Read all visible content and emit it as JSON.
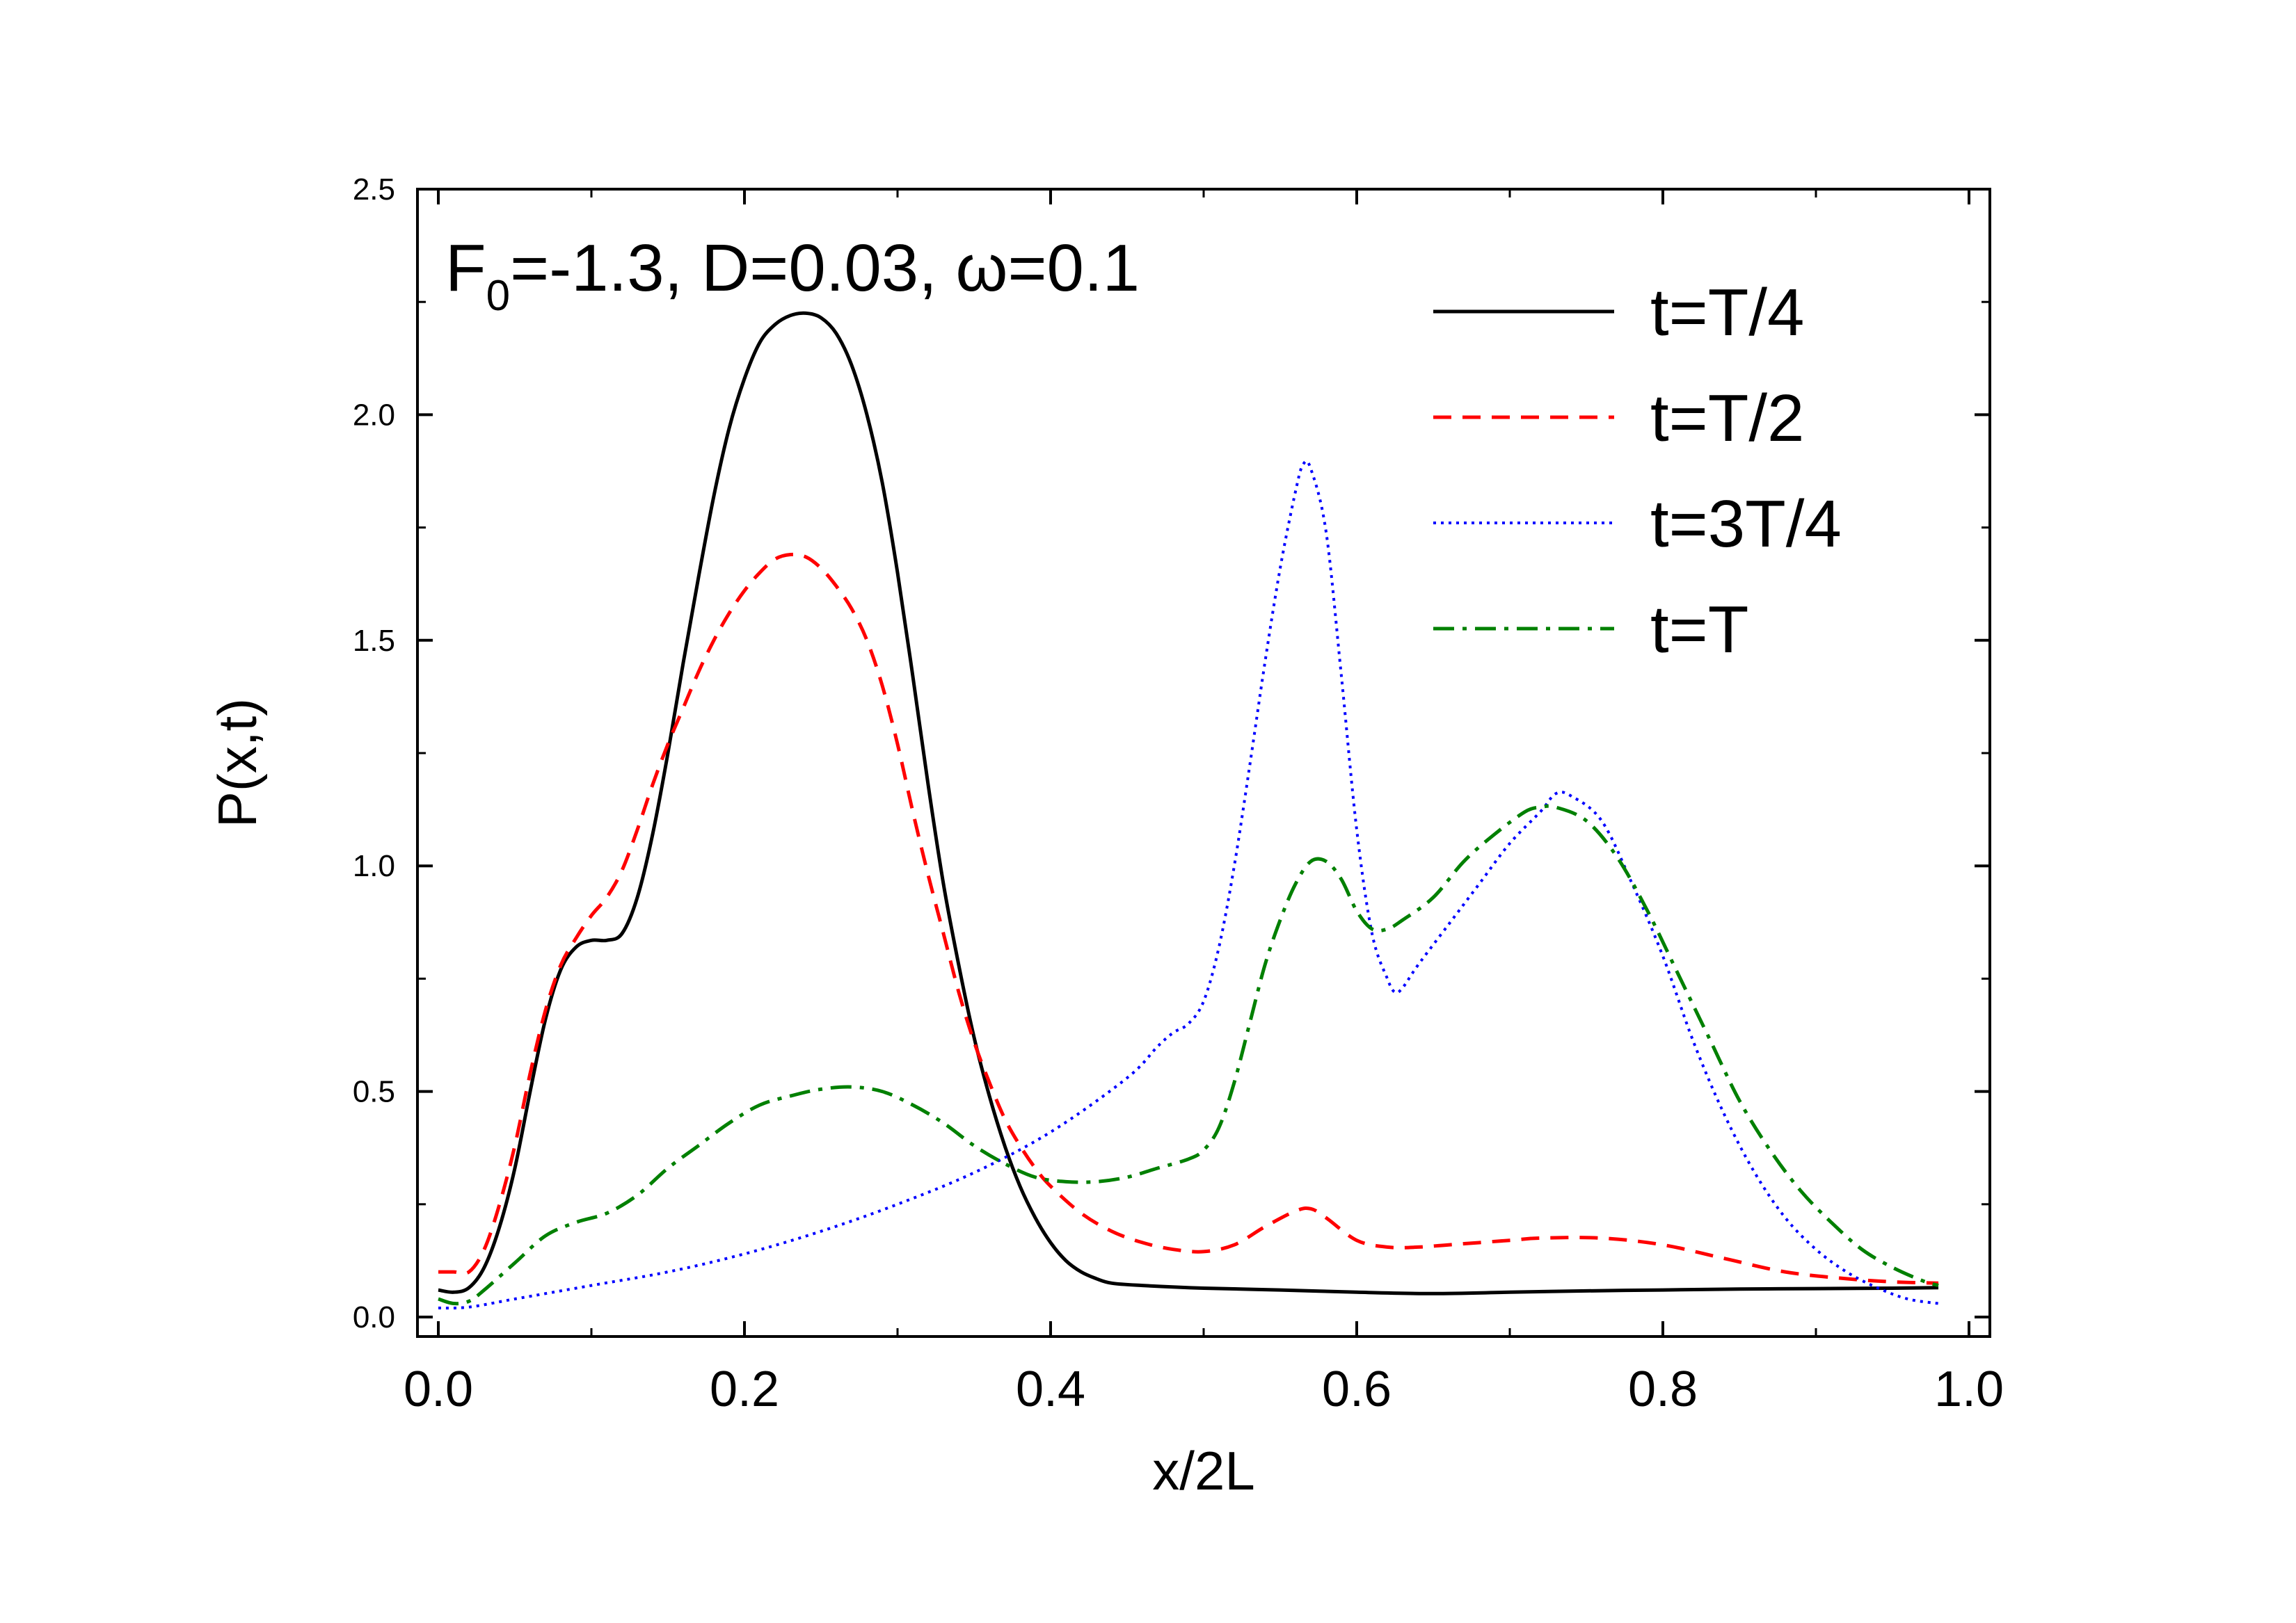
{
  "chart_data": {
    "type": "line",
    "title": "",
    "xlabel": "x/2L",
    "ylabel": "P(x,t)",
    "xlim": [
      0.0,
      1.0
    ],
    "ylim": [
      0.0,
      2.5
    ],
    "xticks": [
      "0.0",
      "0.2",
      "0.4",
      "0.6",
      "0.8",
      "1.0"
    ],
    "xtick_values": [
      0.0,
      0.2,
      0.4,
      0.6,
      0.8,
      1.0
    ],
    "yticks": [
      "0.0",
      "0.5",
      "1.0",
      "1.5",
      "2.0",
      "2.5"
    ],
    "ytick_values": [
      0.0,
      0.5,
      1.0,
      1.5,
      2.0,
      2.5
    ],
    "grid": false,
    "legend_position": "top-right",
    "annotation": {
      "parts": [
        "F",
        "0",
        "=-1.3, D=0.03, ",
        "ω",
        "=0.1"
      ]
    },
    "series": [
      {
        "name": "t=T/4",
        "color": "#000000",
        "dash": "solid",
        "points": [
          [
            0.0,
            0.06
          ],
          [
            0.01,
            0.055
          ],
          [
            0.02,
            0.065
          ],
          [
            0.03,
            0.11
          ],
          [
            0.04,
            0.2
          ],
          [
            0.05,
            0.33
          ],
          [
            0.06,
            0.5
          ],
          [
            0.07,
            0.66
          ],
          [
            0.08,
            0.77
          ],
          [
            0.09,
            0.82
          ],
          [
            0.1,
            0.835
          ],
          [
            0.11,
            0.835
          ],
          [
            0.12,
            0.85
          ],
          [
            0.13,
            0.93
          ],
          [
            0.14,
            1.07
          ],
          [
            0.15,
            1.25
          ],
          [
            0.16,
            1.45
          ],
          [
            0.17,
            1.64
          ],
          [
            0.18,
            1.82
          ],
          [
            0.19,
            1.97
          ],
          [
            0.2,
            2.08
          ],
          [
            0.21,
            2.16
          ],
          [
            0.22,
            2.2
          ],
          [
            0.23,
            2.22
          ],
          [
            0.24,
            2.225
          ],
          [
            0.25,
            2.215
          ],
          [
            0.26,
            2.18
          ],
          [
            0.27,
            2.11
          ],
          [
            0.28,
            2.0
          ],
          [
            0.29,
            1.85
          ],
          [
            0.3,
            1.65
          ],
          [
            0.31,
            1.42
          ],
          [
            0.32,
            1.18
          ],
          [
            0.33,
            0.96
          ],
          [
            0.34,
            0.78
          ],
          [
            0.35,
            0.62
          ],
          [
            0.36,
            0.49
          ],
          [
            0.37,
            0.38
          ],
          [
            0.38,
            0.29
          ],
          [
            0.39,
            0.22
          ],
          [
            0.4,
            0.165
          ],
          [
            0.41,
            0.125
          ],
          [
            0.42,
            0.1
          ],
          [
            0.43,
            0.085
          ],
          [
            0.44,
            0.075
          ],
          [
            0.46,
            0.07
          ],
          [
            0.5,
            0.064
          ],
          [
            0.55,
            0.06
          ],
          [
            0.6,
            0.055
          ],
          [
            0.65,
            0.052
          ],
          [
            0.7,
            0.055
          ],
          [
            0.75,
            0.058
          ],
          [
            0.8,
            0.06
          ],
          [
            0.85,
            0.062
          ],
          [
            0.9,
            0.063
          ],
          [
            0.95,
            0.064
          ],
          [
            0.98,
            0.065
          ]
        ]
      },
      {
        "name": "t=T/2",
        "color": "#ff0000",
        "dash": "dashed",
        "points": [
          [
            0.0,
            0.1
          ],
          [
            0.01,
            0.1
          ],
          [
            0.02,
            0.1
          ],
          [
            0.03,
            0.15
          ],
          [
            0.04,
            0.25
          ],
          [
            0.05,
            0.38
          ],
          [
            0.06,
            0.54
          ],
          [
            0.07,
            0.68
          ],
          [
            0.08,
            0.78
          ],
          [
            0.09,
            0.84
          ],
          [
            0.1,
            0.89
          ],
          [
            0.11,
            0.93
          ],
          [
            0.12,
            0.99
          ],
          [
            0.13,
            1.08
          ],
          [
            0.14,
            1.18
          ],
          [
            0.15,
            1.27
          ],
          [
            0.16,
            1.35
          ],
          [
            0.17,
            1.43
          ],
          [
            0.18,
            1.5
          ],
          [
            0.19,
            1.56
          ],
          [
            0.2,
            1.61
          ],
          [
            0.21,
            1.65
          ],
          [
            0.22,
            1.68
          ],
          [
            0.23,
            1.69
          ],
          [
            0.24,
            1.685
          ],
          [
            0.25,
            1.66
          ],
          [
            0.26,
            1.62
          ],
          [
            0.27,
            1.57
          ],
          [
            0.28,
            1.5
          ],
          [
            0.29,
            1.4
          ],
          [
            0.3,
            1.27
          ],
          [
            0.31,
            1.12
          ],
          [
            0.32,
            0.98
          ],
          [
            0.33,
            0.85
          ],
          [
            0.34,
            0.72
          ],
          [
            0.35,
            0.61
          ],
          [
            0.36,
            0.52
          ],
          [
            0.37,
            0.44
          ],
          [
            0.38,
            0.38
          ],
          [
            0.39,
            0.33
          ],
          [
            0.4,
            0.29
          ],
          [
            0.42,
            0.23
          ],
          [
            0.44,
            0.19
          ],
          [
            0.46,
            0.165
          ],
          [
            0.48,
            0.15
          ],
          [
            0.5,
            0.145
          ],
          [
            0.52,
            0.16
          ],
          [
            0.54,
            0.2
          ],
          [
            0.56,
            0.235
          ],
          [
            0.57,
            0.24
          ],
          [
            0.58,
            0.22
          ],
          [
            0.6,
            0.17
          ],
          [
            0.62,
            0.155
          ],
          [
            0.64,
            0.155
          ],
          [
            0.66,
            0.16
          ],
          [
            0.7,
            0.17
          ],
          [
            0.72,
            0.175
          ],
          [
            0.76,
            0.175
          ],
          [
            0.8,
            0.16
          ],
          [
            0.84,
            0.13
          ],
          [
            0.88,
            0.1
          ],
          [
            0.92,
            0.085
          ],
          [
            0.95,
            0.078
          ],
          [
            0.98,
            0.075
          ]
        ]
      },
      {
        "name": "t=3T/4",
        "color": "#0000ff",
        "dash": "dotted",
        "points": [
          [
            0.0,
            0.02
          ],
          [
            0.02,
            0.022
          ],
          [
            0.05,
            0.04
          ],
          [
            0.1,
            0.07
          ],
          [
            0.15,
            0.1
          ],
          [
            0.2,
            0.14
          ],
          [
            0.25,
            0.19
          ],
          [
            0.3,
            0.25
          ],
          [
            0.35,
            0.32
          ],
          [
            0.4,
            0.41
          ],
          [
            0.45,
            0.53
          ],
          [
            0.47,
            0.6
          ],
          [
            0.48,
            0.63
          ],
          [
            0.49,
            0.65
          ],
          [
            0.5,
            0.7
          ],
          [
            0.51,
            0.82
          ],
          [
            0.52,
            1.0
          ],
          [
            0.53,
            1.22
          ],
          [
            0.54,
            1.45
          ],
          [
            0.55,
            1.66
          ],
          [
            0.56,
            1.83
          ],
          [
            0.565,
            1.89
          ],
          [
            0.57,
            1.88
          ],
          [
            0.58,
            1.74
          ],
          [
            0.59,
            1.42
          ],
          [
            0.6,
            1.08
          ],
          [
            0.61,
            0.85
          ],
          [
            0.62,
            0.75
          ],
          [
            0.625,
            0.72
          ],
          [
            0.63,
            0.73
          ],
          [
            0.64,
            0.78
          ],
          [
            0.66,
            0.87
          ],
          [
            0.68,
            0.96
          ],
          [
            0.7,
            1.05
          ],
          [
            0.72,
            1.12
          ],
          [
            0.73,
            1.16
          ],
          [
            0.74,
            1.155
          ],
          [
            0.76,
            1.1
          ],
          [
            0.78,
            0.96
          ],
          [
            0.8,
            0.8
          ],
          [
            0.82,
            0.61
          ],
          [
            0.84,
            0.45
          ],
          [
            0.86,
            0.32
          ],
          [
            0.88,
            0.22
          ],
          [
            0.9,
            0.15
          ],
          [
            0.92,
            0.1
          ],
          [
            0.94,
            0.065
          ],
          [
            0.96,
            0.04
          ],
          [
            0.98,
            0.03
          ]
        ]
      },
      {
        "name": "t=T",
        "color": "#008000",
        "dash": "dashdot",
        "points": [
          [
            0.0,
            0.04
          ],
          [
            0.01,
            0.03
          ],
          [
            0.02,
            0.035
          ],
          [
            0.03,
            0.06
          ],
          [
            0.05,
            0.12
          ],
          [
            0.07,
            0.18
          ],
          [
            0.09,
            0.21
          ],
          [
            0.11,
            0.23
          ],
          [
            0.13,
            0.27
          ],
          [
            0.15,
            0.33
          ],
          [
            0.17,
            0.38
          ],
          [
            0.19,
            0.43
          ],
          [
            0.21,
            0.47
          ],
          [
            0.23,
            0.49
          ],
          [
            0.25,
            0.505
          ],
          [
            0.27,
            0.51
          ],
          [
            0.29,
            0.5
          ],
          [
            0.31,
            0.47
          ],
          [
            0.33,
            0.43
          ],
          [
            0.35,
            0.38
          ],
          [
            0.37,
            0.34
          ],
          [
            0.39,
            0.31
          ],
          [
            0.41,
            0.3
          ],
          [
            0.43,
            0.3
          ],
          [
            0.45,
            0.31
          ],
          [
            0.47,
            0.33
          ],
          [
            0.49,
            0.35
          ],
          [
            0.5,
            0.37
          ],
          [
            0.51,
            0.42
          ],
          [
            0.52,
            0.52
          ],
          [
            0.53,
            0.65
          ],
          [
            0.54,
            0.78
          ],
          [
            0.55,
            0.88
          ],
          [
            0.56,
            0.96
          ],
          [
            0.57,
            1.01
          ],
          [
            0.58,
            1.01
          ],
          [
            0.59,
            0.97
          ],
          [
            0.6,
            0.9
          ],
          [
            0.61,
            0.86
          ],
          [
            0.62,
            0.86
          ],
          [
            0.63,
            0.88
          ],
          [
            0.65,
            0.93
          ],
          [
            0.67,
            1.01
          ],
          [
            0.69,
            1.07
          ],
          [
            0.71,
            1.12
          ],
          [
            0.72,
            1.13
          ],
          [
            0.73,
            1.13
          ],
          [
            0.75,
            1.1
          ],
          [
            0.77,
            1.02
          ],
          [
            0.79,
            0.9
          ],
          [
            0.81,
            0.76
          ],
          [
            0.83,
            0.62
          ],
          [
            0.85,
            0.48
          ],
          [
            0.87,
            0.37
          ],
          [
            0.89,
            0.28
          ],
          [
            0.91,
            0.21
          ],
          [
            0.93,
            0.15
          ],
          [
            0.95,
            0.11
          ],
          [
            0.97,
            0.08
          ],
          [
            0.98,
            0.07
          ]
        ]
      }
    ]
  }
}
